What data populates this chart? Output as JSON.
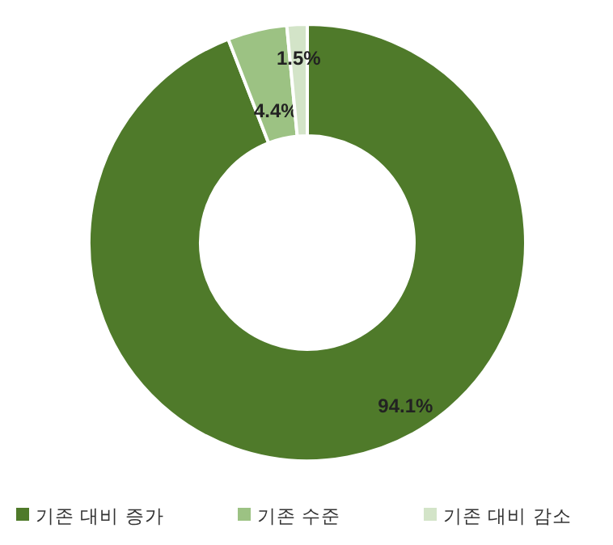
{
  "chart_data": {
    "type": "donut",
    "categories": [
      "기존 대비 증가",
      "기존 수준",
      "기존 대비 감소"
    ],
    "values": [
      94.1,
      4.4,
      1.5
    ],
    "colors": [
      "#4f7a2a",
      "#9cc283",
      "#d3e4c8"
    ],
    "value_labels": [
      "94.1%",
      "4.4%",
      "1.5%"
    ],
    "legend": "bottom"
  }
}
